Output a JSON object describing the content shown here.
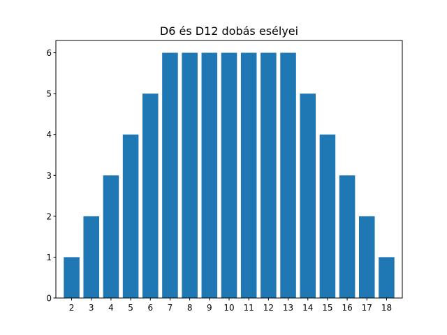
{
  "chart_data": {
    "type": "bar",
    "title": "D6 és D12 dobás esélyei",
    "xlabel": "",
    "ylabel": "",
    "categories": [
      "2",
      "3",
      "4",
      "5",
      "6",
      "7",
      "8",
      "9",
      "10",
      "11",
      "12",
      "13",
      "14",
      "15",
      "16",
      "17",
      "18"
    ],
    "values": [
      1,
      2,
      3,
      4,
      5,
      6,
      6,
      6,
      6,
      6,
      6,
      6,
      5,
      4,
      3,
      2,
      1
    ],
    "ylim": [
      0,
      6
    ],
    "yticks": [
      0,
      1,
      2,
      3,
      4,
      5,
      6
    ],
    "grid": false,
    "bar_color": "#1f77b4"
  }
}
